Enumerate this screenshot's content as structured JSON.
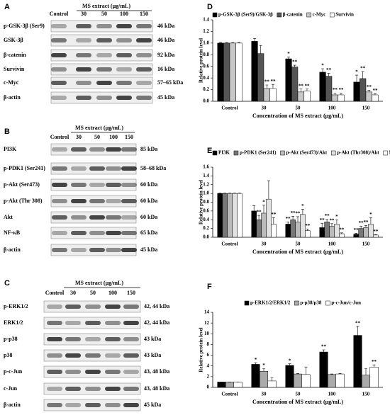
{
  "blots": [
    {
      "panel_label": "A",
      "header": "MS extract (μg/mL)",
      "lanes": [
        "Control",
        "30",
        "50",
        "100",
        "150"
      ],
      "rows": [
        {
          "name": "p-GSK-3β (Ser9)",
          "size": "46 kDa"
        },
        {
          "name": "GSK-3β",
          "size": "46 kDa"
        },
        {
          "name": "β-catenin",
          "size": "92 kDa"
        },
        {
          "name": "Survivin",
          "size": "16 kDa"
        },
        {
          "name": "c-Myc",
          "size": "57–65 kDa"
        },
        {
          "name": "β-actin",
          "size": "45 kDa"
        }
      ]
    },
    {
      "panel_label": "B",
      "header": "MS extract (μg/mL)",
      "lanes": [
        "Control",
        "30",
        "50",
        "100",
        "150"
      ],
      "rows": [
        {
          "name": "PI3K",
          "size": "85 kDa"
        },
        {
          "name": "p-PDK1 (Ser241)",
          "size": "58–68 kDa"
        },
        {
          "name": "p-Akt (Ser473)",
          "size": "60 kDa"
        },
        {
          "name": "p-Akt (Thr 308)",
          "size": "60 kDa"
        },
        {
          "name": "Akt",
          "size": "60 kDa"
        },
        {
          "name": "NF-κB",
          "size": "65 kDa"
        },
        {
          "name": "β-actin",
          "size": "45 kDa"
        }
      ]
    },
    {
      "panel_label": "C",
      "header": "MS extract (μg/mL)",
      "lanes": [
        "Control",
        "30",
        "50",
        "100",
        "150"
      ],
      "rows": [
        {
          "name": "p-ERK1/2",
          "size": "42, 44 kDa"
        },
        {
          "name": "ERK1/2",
          "size": "42, 44 kDa"
        },
        {
          "name": "p-p38",
          "size": "43 kDa"
        },
        {
          "name": "p38",
          "size": "43 kDa"
        },
        {
          "name": "p-c-Jun",
          "size": "43, 48 kDa"
        },
        {
          "name": "c-Jun",
          "size": "43, 48 kDa"
        },
        {
          "name": "β-actin",
          "size": "45 kDa"
        }
      ]
    }
  ],
  "chart_data": [
    {
      "type": "bar",
      "panel_label": "D",
      "y_label": "Relative protein level",
      "x_label": "Concentration of MS extract  (μg/mL)",
      "categories": [
        "Control",
        "30",
        "50",
        "100",
        "150"
      ],
      "ylim": [
        0,
        1.4
      ],
      "yticks": [
        {
          "value": 0,
          "label": "0.0"
        },
        0.2,
        0.4,
        0.6,
        0.8,
        {
          "value": 1,
          "label": "1.0"
        },
        1.2,
        1.4
      ],
      "series": [
        {
          "name": "p-GSK-3β (Ser9)/GSK-3β",
          "color": "#000000",
          "values": [
            1,
            1.03,
            0.73,
            0.5,
            0.33
          ],
          "errors": [
            0.01,
            0.05,
            0.03,
            0.06,
            0.12
          ],
          "significance": [
            null,
            null,
            "*",
            "*",
            "*"
          ]
        },
        {
          "name": "β-catenin",
          "color": "#555555",
          "values": [
            1,
            0.82,
            0.59,
            0.43,
            0.39
          ],
          "errors": [
            0.01,
            0.14,
            0.03,
            0.05,
            0.12
          ],
          "significance": [
            null,
            null,
            "**",
            "**",
            "**"
          ]
        },
        {
          "name": "c-Myc",
          "color": "#c8c8c8",
          "values": [
            1,
            0.22,
            0.16,
            0.11,
            0.16
          ],
          "errors": [
            0.01,
            0.06,
            0.05,
            0.03,
            0.03
          ],
          "significance": [
            null,
            "**",
            "**",
            "**",
            "**"
          ]
        },
        {
          "name": "Survivin",
          "color": "#ffffff",
          "values": [
            1,
            0.22,
            0.18,
            0.11,
            0.11
          ],
          "errors": [
            0.01,
            0.07,
            0.03,
            0.03,
            0.02
          ],
          "significance": [
            null,
            "**",
            "**",
            "**",
            "**"
          ]
        }
      ]
    },
    {
      "type": "bar",
      "panel_label": "E",
      "y_label": "Relative protein level",
      "x_label": "Concentration of MS extract  (μg/mL)",
      "categories": [
        "Control",
        "30",
        "50",
        "100",
        "150"
      ],
      "ylim": [
        0,
        1.6
      ],
      "yticks": [
        {
          "value": 0,
          "label": "0.0"
        },
        0.2,
        0.4,
        0.6,
        0.8,
        {
          "value": 1,
          "label": "1.0"
        },
        1.2,
        1.4,
        1.6
      ],
      "series": [
        {
          "name": "PI3K",
          "color": "#000000",
          "values": [
            1,
            0.6,
            0.3,
            0.22,
            0.07
          ],
          "errors": [
            0.01,
            0.12,
            0.05,
            0.1,
            0.02
          ],
          "significance": [
            null,
            null,
            "**",
            "**",
            "**"
          ]
        },
        {
          "name": "p-PDK1 (Ser241)",
          "color": "#777777",
          "values": [
            1,
            0.4,
            0.4,
            0.35,
            0.2
          ],
          "errors": [
            0.01,
            0.1,
            0.08,
            0.06,
            0.05
          ],
          "significance": [
            null,
            "**",
            "**",
            "**",
            "**"
          ]
        },
        {
          "name": "p-Akt (Ser473)/Akt",
          "color": "#bbbbbb",
          "values": [
            1,
            0.55,
            0.35,
            0.25,
            0.22
          ],
          "errors": [
            0.01,
            0.18,
            0.12,
            0.06,
            0.05
          ],
          "significance": [
            null,
            "*",
            "**",
            "**",
            "**"
          ]
        },
        {
          "name": "p-Akt (Thr308)/Akt",
          "color": "#e2e2e2",
          "values": [
            1,
            0.87,
            0.52,
            0.3,
            0.3
          ],
          "errors": [
            0.01,
            0.42,
            0.12,
            0.1,
            0.15
          ],
          "significance": [
            null,
            null,
            "*",
            "*",
            "*"
          ]
        },
        {
          "name": "NF-κB",
          "color": "#ffffff",
          "values": [
            1,
            0.3,
            0.15,
            0.08,
            0.05
          ],
          "errors": [
            0.01,
            0.15,
            0.04,
            0.02,
            0.01
          ],
          "significance": [
            null,
            "**",
            "**",
            "**",
            "**"
          ]
        }
      ]
    },
    {
      "type": "bar",
      "panel_label": "F",
      "y_label": "Relative protein level",
      "x_label": "Concentration of MS extract  (μg/mL)",
      "categories": [
        "Control",
        "30",
        "50",
        "100",
        "150"
      ],
      "ylim": [
        0,
        14
      ],
      "yticks": [
        0,
        2,
        4,
        6,
        8,
        10,
        12,
        14
      ],
      "series": [
        {
          "name": "p-ERK1/2/ERK1/2",
          "color": "#000000",
          "values": [
            1,
            4.3,
            4.1,
            6.6,
            9.7
          ],
          "errors": [
            0.02,
            0.3,
            0.3,
            0.4,
            1.7
          ],
          "significance": [
            null,
            "*",
            "*",
            "**",
            "**"
          ]
        },
        {
          "name": "p-p38/p38",
          "color": "#aaaaaa",
          "values": [
            1,
            3,
            2.5,
            2.4,
            2.3
          ],
          "errors": [
            0.02,
            0.5,
            0.1,
            0.1,
            1.2
          ],
          "significance": [
            null,
            "*",
            null,
            null,
            null
          ]
        },
        {
          "name": "p-c-Jun/c-Jun",
          "color": "#ffffff",
          "values": [
            1,
            1.2,
            2.4,
            2.5,
            3.8
          ],
          "errors": [
            0.02,
            0.6,
            1.4,
            0.1,
            0.4
          ],
          "significance": [
            null,
            null,
            null,
            null,
            "**"
          ]
        }
      ]
    }
  ]
}
